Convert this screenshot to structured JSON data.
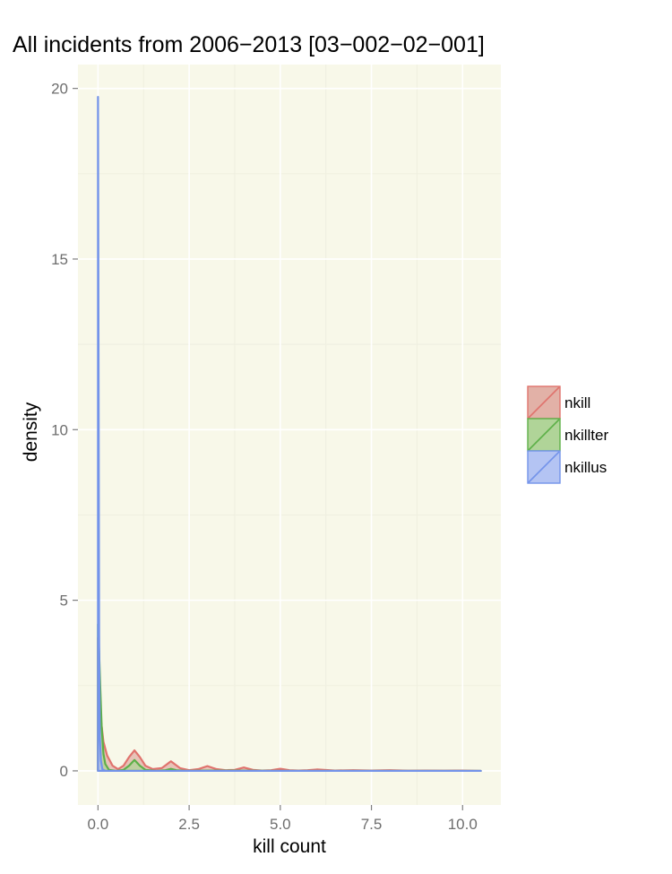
{
  "chart_data": {
    "type": "area",
    "title": "All incidents from 2006−2013 [03−002−02−001]",
    "xlabel": "kill count",
    "ylabel": "density",
    "xlim": [
      -0.55,
      11.05
    ],
    "ylim": [
      -1.0,
      20.7
    ],
    "x_ticks": [
      0,
      2.5,
      5,
      7.5,
      10
    ],
    "x_tick_labels": [
      "0.0",
      "2.5",
      "5.0",
      "7.5",
      "10.0"
    ],
    "y_ticks": [
      0,
      5,
      10,
      15,
      20
    ],
    "y_tick_labels": [
      "0",
      "5",
      "10",
      "15",
      "20"
    ],
    "grid": true,
    "panel_background": "#f8f8e9",
    "legend_position": "right",
    "series": [
      {
        "name": "nkill",
        "color": "#e0736d",
        "fill": "#e2b1a7",
        "x": [
          0,
          0.04,
          0.08,
          0.15,
          0.25,
          0.4,
          0.55,
          0.7,
          0.85,
          1.0,
          1.15,
          1.3,
          1.5,
          1.75,
          2.0,
          2.25,
          2.5,
          2.75,
          3.0,
          3.25,
          3.5,
          3.75,
          4.0,
          4.25,
          4.5,
          4.75,
          5.0,
          5.25,
          5.5,
          5.75,
          6.0,
          6.5,
          7.0,
          7.5,
          8.0,
          8.5,
          9.0,
          9.5,
          10.0,
          10.5
        ],
        "y": [
          3.9,
          2.7,
          1.5,
          0.85,
          0.45,
          0.15,
          0.05,
          0.15,
          0.4,
          0.6,
          0.4,
          0.15,
          0.05,
          0.08,
          0.28,
          0.08,
          0.02,
          0.05,
          0.14,
          0.05,
          0.02,
          0.03,
          0.1,
          0.03,
          0.01,
          0.02,
          0.06,
          0.02,
          0.01,
          0.02,
          0.04,
          0.01,
          0.02,
          0.01,
          0.02,
          0.005,
          0.01,
          0.005,
          0.01,
          0.0
        ]
      },
      {
        "name": "nkillter",
        "color": "#5db048",
        "fill": "#b0d498",
        "x": [
          0,
          0.03,
          0.06,
          0.1,
          0.15,
          0.2,
          0.3,
          0.5,
          0.7,
          0.85,
          1.0,
          1.15,
          1.3,
          1.6,
          1.85,
          2.0,
          2.15,
          2.4,
          3.0,
          4.0,
          5.0,
          6.0,
          7.0,
          8.0,
          9.0,
          10.0,
          10.5
        ],
        "y": [
          4.3,
          3.5,
          2.5,
          1.3,
          0.5,
          0.2,
          0.03,
          0.0,
          0.03,
          0.15,
          0.32,
          0.15,
          0.03,
          0.0,
          0.02,
          0.06,
          0.02,
          0.0,
          0.01,
          0.005,
          0.0,
          0.0,
          0.0,
          0.0,
          0.0,
          0.0,
          0.0
        ]
      },
      {
        "name": "nkillus",
        "color": "#7393ea",
        "fill": "#b4c4f3",
        "x": [
          0,
          0.015,
          0.03,
          0.05,
          0.08,
          0.12,
          0.2,
          10.5
        ],
        "y": [
          19.75,
          12.0,
          4.0,
          1.0,
          0.3,
          0.05,
          0.0,
          0.0
        ]
      }
    ]
  }
}
